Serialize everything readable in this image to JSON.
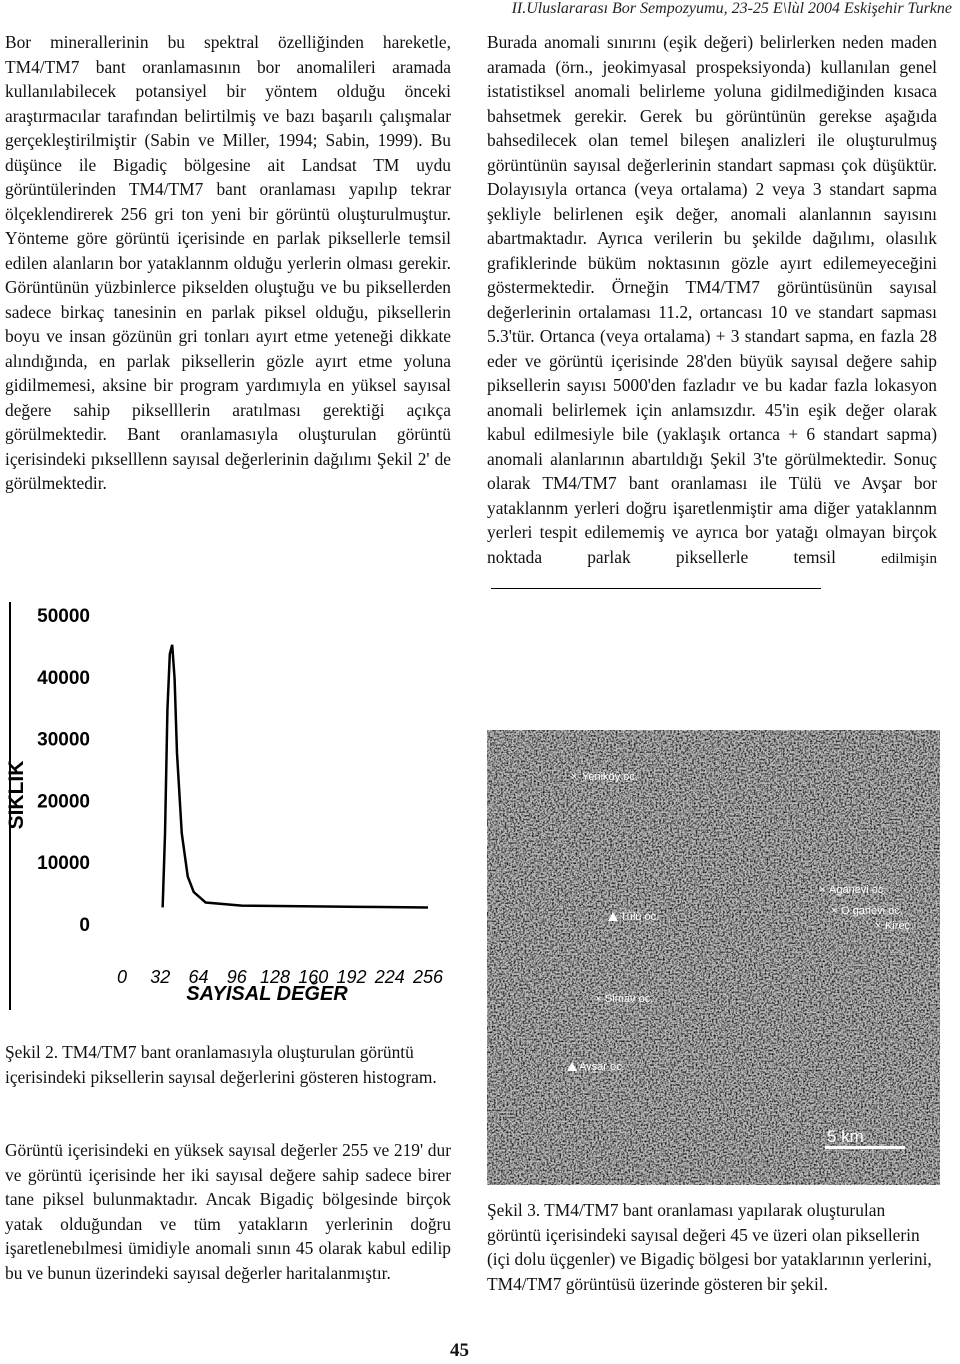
{
  "header": {
    "text": "II.Uluslararası Bor Sempozyumu, 23-25 E\\lùl 2004 Eskişehir Turkne"
  },
  "left_column": {
    "paragraph_1": "Bor minerallerinin bu spektral özelliğinden hareketle, TM4/TM7 bant oranlamasının bor anomalileri aramada kullanılabilecek potansiyel bir yöntem olduğu önceki araştırmacılar tarafından belirtilmiş ve bazı başarılı çalışmalar gerçekleştirilmiştir (Sabin ve Miller, 1994; Sabin, 1999). Bu düşünce ile Bigadiç bölgesine ait Landsat TM uydu görüntülerinden TM4/TM7 bant oranlaması yapılıp tekrar ölçeklendirerek 256 gri ton yeni bir görüntü oluşturulmuştur. Yönteme göre görüntü içerisinde en parlak piksellerle temsil edilen alanların bor yataklannm olduğu yerlerin olması gerekir. Görüntünün yüzbinlerce pikselden oluştuğu ve bu piksellerden sadece birkaç tanesinin en parlak piksel olduğu, piksellerin boyu ve insan gözünün gri tonları ayırt etme yeteneği dikkate alındığında, en parlak piksellerin gözle ayırt etme yoluna gidilmemesi, aksine bir program yardımıyla en yüksel sayısal değere sahip pikselllerin aratılması gerektiği açıkça görülmektedir. Bant oranlamasıyla oluşturulan görüntü içerisindeki pıkselllenn sayısal değerlerinin dağılımı Şekil 2' de görülmektedir.",
    "caption_2": "Şekil 2. TM4/TM7 bant oranlamasıyla oluşturulan görüntü içerisindeki piksellerin sayısal değerlerini gösteren histogram.",
    "paragraph_2": "Görüntü içerisindeki en yüksek sayısal değerler 255 ve 219' dur ve görüntü içerisinde her iki sayısal değere sahip sadece birer tane piksel bulunmaktadır. Ancak Bigadiç bölgesinde birçok yatak olduğundan ve tüm yatakların yerlerinin doğru işaretlenebılmesi ümidiyle anomali sının 45 olarak kabul edilip bu ve bunun üzerindeki sayısal değerler haritalanmıştır."
  },
  "right_column": {
    "paragraph": "Burada anomali sınırını (eşik değeri) belirlerken neden maden aramada (örn., jeokimyasal prospeksiyonda) kullanılan genel istatistiksel anomali belirleme yoluna gidilmediğinden kısaca bahsetmek gerekir. Gerek bu görüntünün gerekse aşağıda bahsedilecek olan temel bileşen analizleri ile oluşturulmuş görüntünün sayısal değerlerinin standart sapması çok düşüktür. Dolayısıyla ortanca (veya ortalama) 2 veya 3 standart sapma şekliyle belirlenen eşik değer, anomali alanlannın sayısını abartmaktadır. Ayrıca verilerin bu şekilde dağılımı, olasılık grafiklerinde büküm noktasının gözle ayırt edilemeyeceğini göstermektedir. Örneğin TM4/TM7 görüntüsünün sayısal değerlerinin ortalaması 11.2, ortancası 10 ve standart sapması 5.3'tür. Ortanca (veya ortalama) + 3 standart sapma, en fazla 28 eder ve görüntü içerisinde 28'den büyük sayısal değere sahip piksellerin sayısı 5000'den fazladır ve bu kadar fazla lokasyon anomali belirlemek için anlamsızdır. 45'in eşik değer olarak kabul edilmesiyle bile (yaklaşık ortanca + 6 standart sapma) anomali alanlarının abartıldığı Şekil 3'te görülmektedir. Sonuç olarak TM4/TM7 bant oranlaması ile Tülü ve Avşar bor yataklannm yerleri doğru işaretlenmiştir ama diğer yataklannm yerleri tespit edilememiş ve ayrıca bor yatağı olmayan birçok noktada parlak piksellerle temsil",
    "last_word": "edilmişin",
    "caption_3": "Şekil 3. TM4/TM7 bant oranlaması yapılarak oluşturulan görüntü içerisindeki sayısal değeri 45 ve üzeri olan piksellerin (içi dolu üçgenler) ve Bigadiç bölgesi bor yataklarının yerlerini, TM4/TM7 görüntüsü üzerinde gösteren bir şekil."
  },
  "figure_3": {
    "labels": [
      "Yeniköy oc.",
      "Aganevi oc.",
      "O.ganevi oc.",
      "Kireç",
      "Tülü oc.",
      "Simav oc.",
      "Avşar oc."
    ],
    "scale": "5 km"
  },
  "page_number": "45",
  "chart_data": {
    "type": "line",
    "ylabel": "SIKLIK",
    "xlabel": "SAYISAL DEĞER",
    "x": [
      34,
      36,
      38,
      40,
      42,
      44,
      46,
      50,
      55,
      60,
      70,
      100,
      150,
      200,
      256
    ],
    "values": [
      3000,
      15000,
      35000,
      44000,
      45500,
      40000,
      28000,
      15000,
      8000,
      5500,
      3800,
      3300,
      3200,
      3100,
      3000
    ],
    "color": "#000000",
    "xlim": [
      0,
      256
    ],
    "xticks": [
      0,
      32,
      64,
      96,
      128,
      160,
      192,
      224,
      256
    ],
    "ylim": [
      0,
      50000
    ],
    "yticks": [
      0,
      10000,
      20000,
      30000,
      40000,
      50000
    ]
  }
}
